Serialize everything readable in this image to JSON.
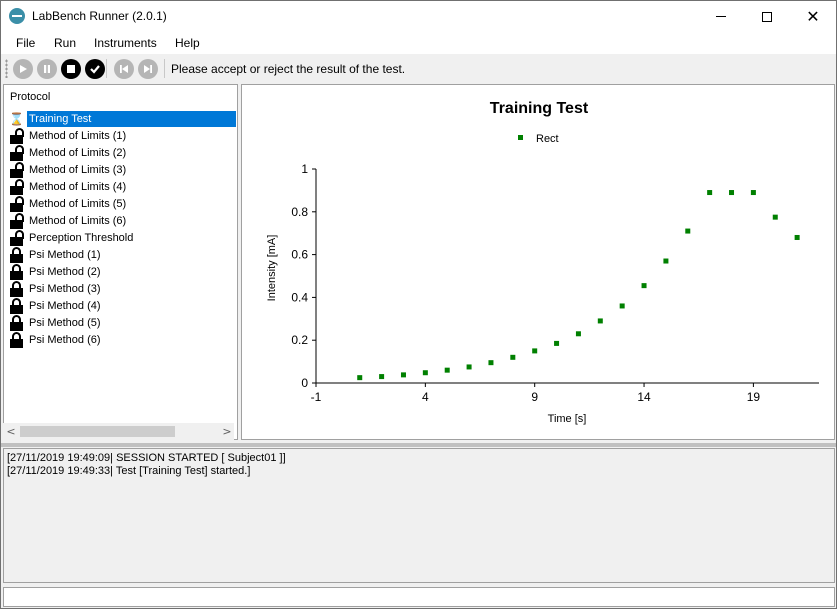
{
  "window": {
    "title": "LabBench Runner (2.0.1)",
    "minimize_glyph": "",
    "maximize_glyph": "",
    "close_glyph": "✕"
  },
  "menu": {
    "file": "File",
    "run": "Run",
    "instruments": "Instruments",
    "help": "Help"
  },
  "toolbar": {
    "buttons": [
      "play",
      "pause",
      "stop",
      "accept",
      "previous",
      "next"
    ],
    "status": "Please accept or reject the result of the test."
  },
  "protocol": {
    "title": "Protocol",
    "items": [
      {
        "label": "Training Test",
        "icon": "hourglass-icon",
        "selected": true
      },
      {
        "label": "Method of Limits (1)",
        "icon": "lock-open-icon"
      },
      {
        "label": "Method of Limits (2)",
        "icon": "lock-open-icon"
      },
      {
        "label": "Method of Limits (3)",
        "icon": "lock-open-icon"
      },
      {
        "label": "Method of Limits (4)",
        "icon": "lock-open-icon"
      },
      {
        "label": "Method of Limits (5)",
        "icon": "lock-open-icon"
      },
      {
        "label": "Method of Limits (6)",
        "icon": "lock-open-icon"
      },
      {
        "label": "Perception Threshold",
        "icon": "lock-open-icon"
      },
      {
        "label": "Psi Method (1)",
        "icon": "lock-closed-icon"
      },
      {
        "label": "Psi Method (2)",
        "icon": "lock-closed-icon"
      },
      {
        "label": "Psi Method (3)",
        "icon": "lock-closed-icon"
      },
      {
        "label": "Psi Method (4)",
        "icon": "lock-closed-icon"
      },
      {
        "label": "Psi Method (5)",
        "icon": "lock-closed-icon"
      },
      {
        "label": "Psi Method (6)",
        "icon": "lock-closed-icon"
      }
    ],
    "scroll_left": "<",
    "scroll_right": ">"
  },
  "chart_data": {
    "type": "scatter",
    "title": "Training Test",
    "xlabel": "Time [s]",
    "ylabel": "Intensity [mA]",
    "xlim": [
      -1,
      22
    ],
    "ylim": [
      0,
      1
    ],
    "xticks": [
      -1,
      4,
      9,
      14,
      19
    ],
    "yticks": [
      0,
      0.2,
      0.4,
      0.6,
      0.8,
      1
    ],
    "xtick_labels": [
      "-1",
      "4",
      "9",
      "14",
      "19"
    ],
    "ytick_labels": [
      "0",
      "0.2",
      "0.4",
      "0.6",
      "0.8",
      "1"
    ],
    "legend_position": "top-center",
    "grid": false,
    "series": [
      {
        "name": "Rect",
        "color": "#008000",
        "x": [
          1,
          2,
          3,
          4,
          5,
          6,
          7,
          8,
          9,
          10,
          11,
          12,
          13,
          14,
          15,
          16,
          17,
          18,
          19,
          20,
          21
        ],
        "y": [
          0.025,
          0.03,
          0.038,
          0.048,
          0.06,
          0.075,
          0.095,
          0.12,
          0.15,
          0.185,
          0.23,
          0.29,
          0.36,
          0.455,
          0.57,
          0.71,
          0.89,
          0.89,
          0.89,
          0.775,
          0.68
        ]
      }
    ]
  },
  "log": {
    "lines": [
      "[27/11/2019 19:49:09| SESSION STARTED [ Subject01 ]]",
      "[27/11/2019 19:49:33| Test [Training Test] started.]"
    ]
  },
  "command": {
    "value": ""
  }
}
